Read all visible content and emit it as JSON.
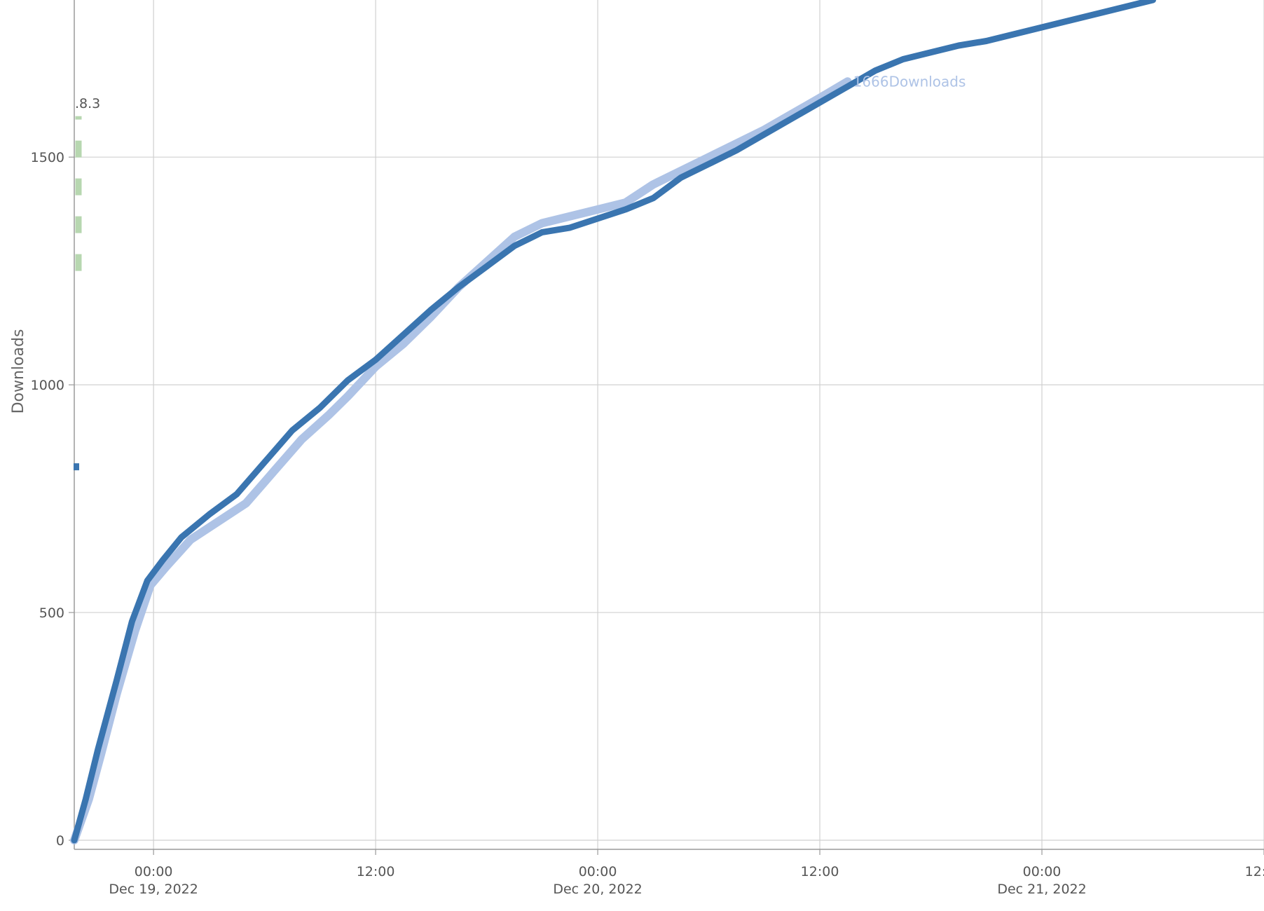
{
  "chart_data": {
    "type": "line",
    "title": "",
    "xlabel": "",
    "ylabel": "Downloads",
    "grid": true,
    "x_axis": {
      "range": [
        "2022-12-18T19:43",
        "2022-12-21T12:00"
      ],
      "ticks": [
        {
          "x": "2022-12-19T00:00",
          "time": "00:00",
          "date": "Dec 19, 2022"
        },
        {
          "x": "2022-12-19T12:00",
          "time": "12:00",
          "date": ""
        },
        {
          "x": "2022-12-20T00:00",
          "time": "00:00",
          "date": "Dec 20, 2022"
        },
        {
          "x": "2022-12-20T12:00",
          "time": "12:00",
          "date": ""
        },
        {
          "x": "2022-12-21T00:00",
          "time": "00:00",
          "date": "Dec 21, 2022"
        },
        {
          "x": "2022-12-21T12:00",
          "time": "12:00",
          "date": ""
        }
      ]
    },
    "y_axis": {
      "range": [
        -20,
        1845
      ],
      "ticks": [
        0,
        500,
        1000,
        1500
      ]
    },
    "series": [
      {
        "name": "",
        "color": "#3a75b0",
        "points": [
          [
            "2022-12-18T19:43",
            0
          ],
          [
            "2022-12-18T20:20",
            90
          ],
          [
            "2022-12-18T21:00",
            200
          ],
          [
            "2022-12-18T22:00",
            350
          ],
          [
            "2022-12-18T22:50",
            480
          ],
          [
            "2022-12-18T23:40",
            570
          ],
          [
            "2022-12-19T00:30",
            615
          ],
          [
            "2022-12-19T01:30",
            665
          ],
          [
            "2022-12-19T03:00",
            715
          ],
          [
            "2022-12-19T04:30",
            760
          ],
          [
            "2022-12-19T06:00",
            830
          ],
          [
            "2022-12-19T07:30",
            900
          ],
          [
            "2022-12-19T09:00",
            950
          ],
          [
            "2022-12-19T10:30",
            1010
          ],
          [
            "2022-12-19T12:00",
            1055
          ],
          [
            "2022-12-19T13:30",
            1110
          ],
          [
            "2022-12-19T15:00",
            1165
          ],
          [
            "2022-12-19T16:30",
            1215
          ],
          [
            "2022-12-19T18:00",
            1260
          ],
          [
            "2022-12-19T19:30",
            1305
          ],
          [
            "2022-12-19T21:00",
            1335
          ],
          [
            "2022-12-19T22:30",
            1345
          ],
          [
            "2022-12-20T00:00",
            1365
          ],
          [
            "2022-12-20T01:30",
            1385
          ],
          [
            "2022-12-20T03:00",
            1410
          ],
          [
            "2022-12-20T04:30",
            1455
          ],
          [
            "2022-12-20T06:00",
            1485
          ],
          [
            "2022-12-20T07:30",
            1515
          ],
          [
            "2022-12-20T09:00",
            1550
          ],
          [
            "2022-12-20T10:30",
            1585
          ],
          [
            "2022-12-20T12:00",
            1620
          ],
          [
            "2022-12-20T13:30",
            1655
          ],
          [
            "2022-12-20T15:00",
            1690
          ],
          [
            "2022-12-20T16:30",
            1715
          ],
          [
            "2022-12-20T18:00",
            1730
          ],
          [
            "2022-12-20T19:30",
            1745
          ],
          [
            "2022-12-20T21:00",
            1755
          ],
          [
            "2022-12-20T22:30",
            1770
          ],
          [
            "2022-12-21T00:00",
            1785
          ],
          [
            "2022-12-21T01:30",
            1800
          ],
          [
            "2022-12-21T03:00",
            1815
          ],
          [
            "2022-12-21T04:30",
            1830
          ],
          [
            "2022-12-21T06:00",
            1845
          ]
        ]
      },
      {
        "name": "",
        "color": "#aec3e6",
        "end_label": "1666Downloads",
        "points": [
          [
            "2022-12-18T19:43",
            0
          ],
          [
            "2022-12-18T20:30",
            90
          ],
          [
            "2022-12-18T21:10",
            190
          ],
          [
            "2022-12-18T22:00",
            320
          ],
          [
            "2022-12-18T23:00",
            460
          ],
          [
            "2022-12-18T23:50",
            560
          ],
          [
            "2022-12-19T00:40",
            600
          ],
          [
            "2022-12-19T02:00",
            660
          ],
          [
            "2022-12-19T03:30",
            700
          ],
          [
            "2022-12-19T05:00",
            740
          ],
          [
            "2022-12-19T06:30",
            810
          ],
          [
            "2022-12-19T08:00",
            880
          ],
          [
            "2022-12-19T09:30",
            935
          ],
          [
            "2022-12-19T10:30",
            975
          ],
          [
            "2022-12-19T12:00",
            1040
          ],
          [
            "2022-12-19T13:30",
            1090
          ],
          [
            "2022-12-19T15:00",
            1150
          ],
          [
            "2022-12-19T16:30",
            1215
          ],
          [
            "2022-12-19T18:00",
            1270
          ],
          [
            "2022-12-19T19:30",
            1325
          ],
          [
            "2022-12-19T21:00",
            1355
          ],
          [
            "2022-12-19T22:30",
            1370
          ],
          [
            "2022-12-20T00:00",
            1385
          ],
          [
            "2022-12-20T01:30",
            1400
          ],
          [
            "2022-12-20T03:00",
            1440
          ],
          [
            "2022-12-20T04:30",
            1470
          ],
          [
            "2022-12-20T06:00",
            1500
          ],
          [
            "2022-12-20T07:30",
            1530
          ],
          [
            "2022-12-20T09:00",
            1560
          ],
          [
            "2022-12-20T10:30",
            1595
          ],
          [
            "2022-12-20T12:00",
            1630
          ],
          [
            "2022-12-20T13:30",
            1666
          ]
        ]
      }
    ],
    "annotations": [
      {
        "text": ".8.3",
        "x": "2022-12-18T19:43",
        "y": 1620,
        "line": "dashed",
        "color": "#b7d7b0",
        "y_from": 1250,
        "y_to": 1590
      },
      {
        "text": "",
        "x": "2022-12-18T19:43",
        "y": 820,
        "color": "#3a75b0"
      }
    ]
  }
}
